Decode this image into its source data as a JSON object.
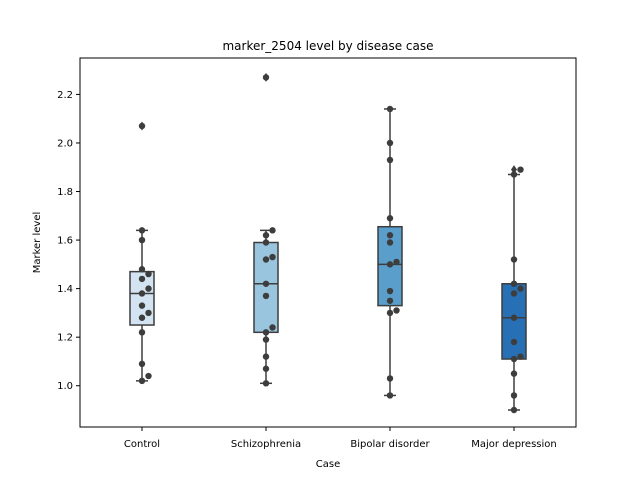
{
  "chart_data": {
    "type": "box",
    "title": "marker_2504 level by disease case",
    "xlabel": "Case",
    "ylabel": "Marker level",
    "ylim": [
      0.83,
      2.35
    ],
    "yticks": [
      "1.0",
      "1.2",
      "1.4",
      "1.6",
      "1.8",
      "2.0",
      "2.2"
    ],
    "grid": false,
    "categories": [
      "Control",
      "Schizophrenia",
      "Bipolar disorder",
      "Major depression"
    ],
    "colors": [
      "#d3e3f1",
      "#99c5df",
      "#5a9ecb",
      "#2770b5"
    ],
    "boxes": [
      {
        "q1": 1.25,
        "median": 1.38,
        "q3": 1.47,
        "whisker_low": 1.02,
        "whisker_high": 1.64,
        "outliers": [
          2.07
        ]
      },
      {
        "q1": 1.22,
        "median": 1.42,
        "q3": 1.59,
        "whisker_low": 1.01,
        "whisker_high": 1.64,
        "outliers": [
          2.27
        ]
      },
      {
        "q1": 1.33,
        "median": 1.5,
        "q3": 1.655,
        "whisker_low": 0.96,
        "whisker_high": 2.14,
        "outliers": []
      },
      {
        "q1": 1.11,
        "median": 1.28,
        "q3": 1.42,
        "whisker_low": 0.9,
        "whisker_high": 1.87,
        "outliers": [
          1.89
        ]
      }
    ],
    "points": [
      [
        1.02,
        1.04,
        1.09,
        1.22,
        1.28,
        1.3,
        1.33,
        1.38,
        1.4,
        1.44,
        1.46,
        1.48,
        1.6,
        1.64,
        2.07
      ],
      [
        1.01,
        1.07,
        1.12,
        1.19,
        1.22,
        1.24,
        1.37,
        1.42,
        1.52,
        1.53,
        1.59,
        1.62,
        1.64,
        2.27
      ],
      [
        0.96,
        1.03,
        1.3,
        1.31,
        1.35,
        1.39,
        1.5,
        1.51,
        1.59,
        1.62,
        1.69,
        1.93,
        2.0,
        2.14
      ],
      [
        0.9,
        0.96,
        1.05,
        1.11,
        1.12,
        1.18,
        1.28,
        1.38,
        1.4,
        1.42,
        1.52,
        1.87,
        1.89
      ]
    ]
  }
}
